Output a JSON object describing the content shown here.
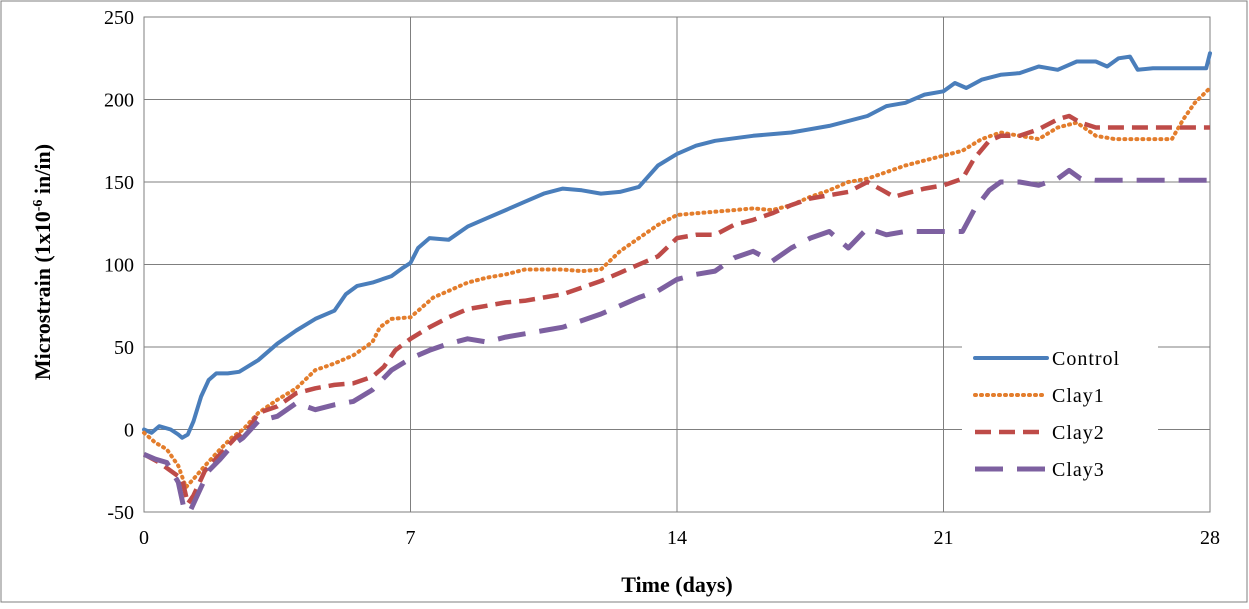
{
  "chart_data": {
    "type": "line",
    "title": "",
    "xlabel": "Time (days)",
    "ylabel_main": "Microstrain (1x10",
    "ylabel_sup": "-6",
    "ylabel_tail": " in/in)",
    "xlim": [
      0,
      28
    ],
    "ylim": [
      -50,
      250
    ],
    "xticks": [
      0,
      7,
      14,
      21,
      28
    ],
    "yticks": [
      -50,
      0,
      50,
      100,
      150,
      200,
      250
    ],
    "grid": true,
    "legend_position": "right",
    "series": [
      {
        "name": "Control",
        "style": "solid",
        "color": "#4a7ebb",
        "points": [
          [
            0,
            0
          ],
          [
            0.2,
            -2
          ],
          [
            0.4,
            2
          ],
          [
            0.7,
            0
          ],
          [
            0.9,
            -3
          ],
          [
            1.0,
            -5
          ],
          [
            1.15,
            -3
          ],
          [
            1.3,
            5
          ],
          [
            1.5,
            20
          ],
          [
            1.7,
            30
          ],
          [
            1.9,
            34
          ],
          [
            2.2,
            34
          ],
          [
            2.5,
            35
          ],
          [
            3,
            42
          ],
          [
            3.5,
            52
          ],
          [
            4,
            60
          ],
          [
            4.5,
            67
          ],
          [
            5,
            72
          ],
          [
            5.3,
            82
          ],
          [
            5.6,
            87
          ],
          [
            6,
            89
          ],
          [
            6.5,
            93
          ],
          [
            6.8,
            98
          ],
          [
            7,
            101
          ],
          [
            7.2,
            110
          ],
          [
            7.5,
            116
          ],
          [
            8,
            115
          ],
          [
            8.5,
            123
          ],
          [
            9,
            128
          ],
          [
            9.5,
            133
          ],
          [
            10,
            138
          ],
          [
            10.5,
            143
          ],
          [
            11,
            146
          ],
          [
            11.5,
            145
          ],
          [
            12,
            143
          ],
          [
            12.5,
            144
          ],
          [
            13,
            147
          ],
          [
            13.5,
            160
          ],
          [
            14,
            167
          ],
          [
            14.5,
            172
          ],
          [
            15,
            175
          ],
          [
            16,
            178
          ],
          [
            17,
            180
          ],
          [
            18,
            184
          ],
          [
            19,
            190
          ],
          [
            19.5,
            196
          ],
          [
            20,
            198
          ],
          [
            20.5,
            203
          ],
          [
            21,
            205
          ],
          [
            21.3,
            210
          ],
          [
            21.6,
            207
          ],
          [
            22,
            212
          ],
          [
            22.5,
            215
          ],
          [
            23,
            216
          ],
          [
            23.5,
            220
          ],
          [
            24,
            218
          ],
          [
            24.5,
            223
          ],
          [
            25,
            223
          ],
          [
            25.3,
            220
          ],
          [
            25.6,
            225
          ],
          [
            25.9,
            226
          ],
          [
            26.1,
            218
          ],
          [
            26.5,
            219
          ],
          [
            27,
            219
          ],
          [
            27.5,
            219
          ],
          [
            27.9,
            219
          ],
          [
            28,
            228
          ]
        ]
      },
      {
        "name": "Clay1",
        "style": "dotted",
        "color": "#e37d2c",
        "points": [
          [
            0,
            -2
          ],
          [
            0.3,
            -8
          ],
          [
            0.6,
            -12
          ],
          [
            0.9,
            -22
          ],
          [
            1.1,
            -35
          ],
          [
            1.3,
            -30
          ],
          [
            1.6,
            -22
          ],
          [
            2,
            -12
          ],
          [
            2.3,
            -5
          ],
          [
            2.6,
            0
          ],
          [
            3,
            10
          ],
          [
            3.5,
            18
          ],
          [
            4,
            25
          ],
          [
            4.5,
            36
          ],
          [
            5,
            40
          ],
          [
            5.5,
            45
          ],
          [
            6,
            53
          ],
          [
            6.2,
            62
          ],
          [
            6.5,
            67
          ],
          [
            7,
            68
          ],
          [
            7.3,
            74
          ],
          [
            7.6,
            80
          ],
          [
            8,
            84
          ],
          [
            8.5,
            89
          ],
          [
            9,
            92
          ],
          [
            9.5,
            94
          ],
          [
            10,
            97
          ],
          [
            10.5,
            97
          ],
          [
            11,
            97
          ],
          [
            11.5,
            96
          ],
          [
            12,
            97
          ],
          [
            12.5,
            108
          ],
          [
            13,
            116
          ],
          [
            13.5,
            124
          ],
          [
            14,
            130
          ],
          [
            14.5,
            131
          ],
          [
            15,
            132
          ],
          [
            15.5,
            133
          ],
          [
            16,
            134
          ],
          [
            16.5,
            133
          ],
          [
            17,
            136
          ],
          [
            17.5,
            141
          ],
          [
            18,
            145
          ],
          [
            18.5,
            150
          ],
          [
            19,
            152
          ],
          [
            19.5,
            156
          ],
          [
            20,
            160
          ],
          [
            20.5,
            163
          ],
          [
            21,
            166
          ],
          [
            21.5,
            169
          ],
          [
            22,
            176
          ],
          [
            22.5,
            180
          ],
          [
            23,
            178
          ],
          [
            23.5,
            176
          ],
          [
            24,
            183
          ],
          [
            24.5,
            186
          ],
          [
            25,
            178
          ],
          [
            25.5,
            176
          ],
          [
            26,
            176
          ],
          [
            26.5,
            176
          ],
          [
            27,
            176
          ],
          [
            27.3,
            188
          ],
          [
            27.6,
            198
          ],
          [
            28,
            207
          ]
        ]
      },
      {
        "name": "Clay2",
        "style": "dashed",
        "color": "#be4b48",
        "points": [
          [
            0,
            -15
          ],
          [
            0.4,
            -20
          ],
          [
            0.7,
            -25
          ],
          [
            1.0,
            -30
          ],
          [
            1.15,
            -45
          ],
          [
            1.3,
            -40
          ],
          [
            1.6,
            -25
          ],
          [
            2,
            -15
          ],
          [
            2.4,
            -5
          ],
          [
            2.8,
            2
          ],
          [
            3,
            10
          ],
          [
            3.5,
            14
          ],
          [
            4,
            22
          ],
          [
            4.5,
            25
          ],
          [
            5,
            27
          ],
          [
            5.5,
            28
          ],
          [
            6,
            32
          ],
          [
            6.3,
            38
          ],
          [
            6.6,
            48
          ],
          [
            7,
            55
          ],
          [
            7.5,
            62
          ],
          [
            8,
            68
          ],
          [
            8.5,
            73
          ],
          [
            9,
            75
          ],
          [
            9.5,
            77
          ],
          [
            10,
            78
          ],
          [
            10.5,
            80
          ],
          [
            11,
            82
          ],
          [
            11.5,
            86
          ],
          [
            12,
            90
          ],
          [
            12.5,
            95
          ],
          [
            13,
            100
          ],
          [
            13.5,
            105
          ],
          [
            14,
            116
          ],
          [
            14.5,
            118
          ],
          [
            15,
            118
          ],
          [
            15.5,
            124
          ],
          [
            16,
            127
          ],
          [
            16.5,
            131
          ],
          [
            17,
            136
          ],
          [
            17.5,
            140
          ],
          [
            18,
            142
          ],
          [
            18.5,
            144
          ],
          [
            19,
            150
          ],
          [
            19.4,
            145
          ],
          [
            19.7,
            141
          ],
          [
            20,
            143
          ],
          [
            20.5,
            146
          ],
          [
            21,
            148
          ],
          [
            21.5,
            152
          ],
          [
            21.8,
            164
          ],
          [
            22.2,
            175
          ],
          [
            22.5,
            178
          ],
          [
            23,
            178
          ],
          [
            23.5,
            182
          ],
          [
            24,
            188
          ],
          [
            24.3,
            190
          ],
          [
            24.6,
            186
          ],
          [
            25,
            183
          ],
          [
            26,
            183
          ],
          [
            27,
            183
          ],
          [
            28,
            183
          ]
        ]
      },
      {
        "name": "Clay3",
        "style": "longdash",
        "color": "#7d60a0",
        "points": [
          [
            0,
            -15
          ],
          [
            0.3,
            -18
          ],
          [
            0.6,
            -20
          ],
          [
            0.9,
            -32
          ],
          [
            1.05,
            -48
          ],
          [
            1.2,
            -50
          ],
          [
            1.4,
            -40
          ],
          [
            1.7,
            -25
          ],
          [
            2,
            -18
          ],
          [
            2.3,
            -10
          ],
          [
            2.6,
            -5
          ],
          [
            3,
            5
          ],
          [
            3.5,
            8
          ],
          [
            4,
            16
          ],
          [
            4.5,
            12
          ],
          [
            5,
            15
          ],
          [
            5.5,
            17
          ],
          [
            6,
            24
          ],
          [
            6.5,
            36
          ],
          [
            7,
            43
          ],
          [
            7.5,
            48
          ],
          [
            8,
            52
          ],
          [
            8.5,
            55
          ],
          [
            9,
            53
          ],
          [
            9.5,
            56
          ],
          [
            10,
            58
          ],
          [
            10.5,
            60
          ],
          [
            11,
            62
          ],
          [
            11.5,
            66
          ],
          [
            12,
            70
          ],
          [
            12.5,
            75
          ],
          [
            13,
            80
          ],
          [
            13.5,
            84
          ],
          [
            14,
            91
          ],
          [
            14.5,
            94
          ],
          [
            15,
            96
          ],
          [
            15.5,
            104
          ],
          [
            16,
            108
          ],
          [
            16.5,
            102
          ],
          [
            17,
            110
          ],
          [
            17.5,
            116
          ],
          [
            18,
            120
          ],
          [
            18.5,
            110
          ],
          [
            19,
            122
          ],
          [
            19.5,
            118
          ],
          [
            20,
            120
          ],
          [
            20.5,
            120
          ],
          [
            21,
            120
          ],
          [
            21.5,
            120
          ],
          [
            21.8,
            133
          ],
          [
            22.2,
            145
          ],
          [
            22.5,
            150
          ],
          [
            23,
            150
          ],
          [
            23.5,
            148
          ],
          [
            24,
            152
          ],
          [
            24.3,
            157
          ],
          [
            24.6,
            152
          ],
          [
            25,
            151
          ],
          [
            26,
            151
          ],
          [
            27,
            151
          ],
          [
            28,
            151
          ]
        ]
      }
    ]
  }
}
